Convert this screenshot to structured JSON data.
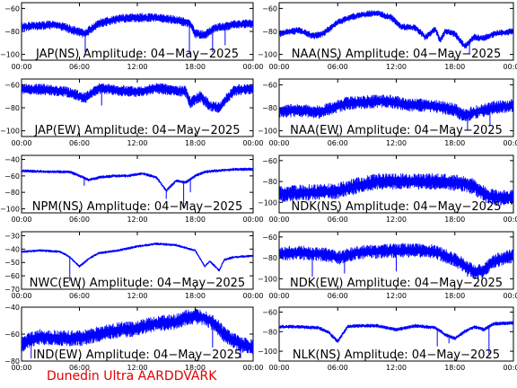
{
  "footer": "Dunedin Ultra AARDDVARK",
  "colors": {
    "trace": "#0000ff",
    "footer": "#e00000",
    "axes": "#000000"
  },
  "chart_data": [
    {
      "type": "line",
      "title": "JAP(NS) Amplitude: 04−May−2025",
      "xlim": [
        0,
        24
      ],
      "ylim": [
        -105,
        -55
      ],
      "yticks": [
        -100,
        -80,
        -60
      ],
      "ytick_labels": [
        "−100",
        "−80",
        "−60"
      ],
      "xtick_labels": [
        "00:00",
        "06:00",
        "12:00",
        "18:00",
        "00:00"
      ],
      "envelope": {
        "x": [
          0,
          2,
          3.5,
          5,
          6.5,
          8,
          10,
          12,
          14,
          16,
          17.5,
          18,
          19,
          20,
          21,
          22,
          24
        ],
        "y": [
          -76,
          -75,
          -74,
          -78,
          -82,
          -73,
          -69,
          -68,
          -68,
          -70,
          -73,
          -82,
          -83,
          -77,
          -76,
          -74,
          -73
        ]
      },
      "band": 4,
      "spikes": [
        [
          6.6,
          -98
        ],
        [
          17.4,
          -100
        ],
        [
          19.8,
          -98
        ],
        [
          21.1,
          -92
        ]
      ]
    },
    {
      "type": "line",
      "title": "NAA(NS) Amplitude: 04−May−2025",
      "xlim": [
        0,
        24
      ],
      "ylim": [
        -105,
        -55
      ],
      "yticks": [
        -100,
        -80,
        -60
      ],
      "ytick_labels": [
        "−100",
        "−80",
        "−60"
      ],
      "xtick_labels": [
        "00:00",
        "06:00",
        "12:00",
        "18:00",
        "00:00"
      ],
      "envelope": {
        "x": [
          0,
          2,
          3.5,
          4.5,
          6,
          8,
          10,
          11.5,
          12.5,
          14,
          15,
          16,
          16.5,
          17,
          18,
          19,
          20,
          21,
          22,
          24
        ],
        "y": [
          -82,
          -79,
          -84,
          -82,
          -72,
          -66,
          -64,
          -68,
          -76,
          -77,
          -85,
          -78,
          -88,
          -80,
          -82,
          -93,
          -85,
          -86,
          -82,
          -80
        ]
      },
      "band": 3,
      "spikes": [
        [
          19.5,
          -100
        ]
      ]
    },
    {
      "type": "line",
      "title": "JAP(EW) Amplitude: 04−May−2025",
      "xlim": [
        0,
        24
      ],
      "ylim": [
        -105,
        -55
      ],
      "yticks": [
        -100,
        -80,
        -60
      ],
      "ytick_labels": [
        "−100",
        "−80",
        "−60"
      ],
      "xtick_labels": [
        "00:00",
        "06:00",
        "12:00",
        "18:00",
        "00:00"
      ],
      "envelope": {
        "x": [
          0,
          2,
          4,
          5.5,
          6.5,
          8,
          10,
          12,
          14,
          16,
          17,
          17.5,
          18.5,
          19.5,
          20.5,
          22,
          24
        ],
        "y": [
          -64,
          -64,
          -65,
          -68,
          -72,
          -63,
          -65,
          -66,
          -63,
          -65,
          -66,
          -76,
          -70,
          -78,
          -80,
          -65,
          -63
        ]
      },
      "band": 5,
      "spikes": [
        [
          8.3,
          -78
        ]
      ]
    },
    {
      "type": "line",
      "title": "NAA(EW) Amplitude: 04−May−2025",
      "xlim": [
        0,
        24
      ],
      "ylim": [
        -105,
        -55
      ],
      "yticks": [
        -100,
        -80,
        -60
      ],
      "ytick_labels": [
        "−100",
        "−80",
        "−60"
      ],
      "xtick_labels": [
        "00:00",
        "06:00",
        "12:00",
        "18:00",
        "00:00"
      ],
      "envelope": {
        "x": [
          0,
          2,
          4,
          5.5,
          7,
          9,
          11,
          13,
          15,
          17,
          18,
          19,
          20,
          21,
          22,
          24
        ],
        "y": [
          -83,
          -82,
          -84,
          -80,
          -76,
          -75,
          -74,
          -77,
          -78,
          -80,
          -82,
          -87,
          -84,
          -82,
          -80,
          -78
        ]
      },
      "band": 6,
      "spikes": [
        [
          19.3,
          -100
        ],
        [
          21.6,
          -96
        ]
      ]
    },
    {
      "type": "line",
      "title": "NPM(NS) Amplitude: 04−May−2025",
      "xlim": [
        0,
        24
      ],
      "ylim": [
        -105,
        -35
      ],
      "yticks": [
        -100,
        -80,
        -60,
        -40
      ],
      "ytick_labels": [
        "−100",
        "−80",
        "−60",
        "−40"
      ],
      "xtick_labels": [
        "00:00",
        "06:00",
        "12:00",
        "18:00",
        "00:00"
      ],
      "envelope": {
        "x": [
          0,
          3,
          5,
          6,
          7,
          8,
          9.5,
          11,
          12.5,
          14,
          15,
          16,
          17,
          18,
          19,
          20,
          21,
          22,
          24
        ],
        "y": [
          -54,
          -55,
          -55,
          -60,
          -65,
          -62,
          -60,
          -60,
          -57,
          -62,
          -78,
          -66,
          -68,
          -60,
          -55,
          -54,
          -53,
          -52,
          -52
        ]
      },
      "band": 2,
      "spikes": [
        [
          6.5,
          -72
        ],
        [
          15,
          -88
        ],
        [
          16.8,
          -98
        ],
        [
          17.5,
          -80
        ]
      ]
    },
    {
      "type": "line",
      "title": "NDK(NS) Amplitude: 04−May−2025",
      "xlim": [
        0,
        24
      ],
      "ylim": [
        -110,
        -55
      ],
      "yticks": [
        -100,
        -80,
        -60
      ],
      "ytick_labels": [
        "−100",
        "−80",
        "−60"
      ],
      "xtick_labels": [
        "00:00",
        "06:00",
        "12:00",
        "18:00",
        "00:00"
      ],
      "envelope": {
        "x": [
          0,
          2,
          4,
          6,
          8,
          10,
          12,
          14,
          16,
          18,
          19,
          20,
          21,
          22,
          24
        ],
        "y": [
          -92,
          -91,
          -90,
          -89,
          -84,
          -80,
          -80,
          -80,
          -80,
          -81,
          -82,
          -85,
          -92,
          -95,
          -96
        ]
      },
      "band": 8,
      "spikes": []
    },
    {
      "type": "line",
      "title": "NWC(EW) Amplitude: 04−May−2025",
      "xlim": [
        0,
        24
      ],
      "ylim": [
        -70,
        -27
      ],
      "yticks": [
        -70,
        -60,
        -50,
        -40,
        -30
      ],
      "ytick_labels": [
        "−70",
        "−60",
        "−50",
        "−40",
        "−30"
      ],
      "xtick_labels": [
        "00:00",
        "06:00",
        "12:00",
        "18:00",
        "00:00"
      ],
      "envelope": {
        "x": [
          0,
          2,
          4,
          5,
          6,
          7,
          8,
          10,
          12,
          14,
          16,
          18,
          19,
          19.5,
          20.5,
          21,
          22,
          24
        ],
        "y": [
          -42,
          -41,
          -42,
          -46,
          -53,
          -47,
          -43,
          -41,
          -38,
          -36,
          -37,
          -41,
          -53,
          -49,
          -56,
          -48,
          -46,
          -45
        ]
      },
      "band": 1,
      "spikes": [
        [
          5,
          -64
        ]
      ]
    },
    {
      "type": "line",
      "title": "NDK(EW) Amplitude: 04−May−2025",
      "xlim": [
        0,
        24
      ],
      "ylim": [
        -110,
        -55
      ],
      "yticks": [
        -100,
        -80,
        -60
      ],
      "ytick_labels": [
        "−100",
        "−80",
        "−60"
      ],
      "xtick_labels": [
        "00:00",
        "06:00",
        "12:00",
        "18:00",
        "00:00"
      ],
      "envelope": {
        "x": [
          0,
          2,
          4,
          5,
          6,
          8,
          10,
          12,
          14,
          16,
          17,
          18,
          19,
          20,
          21,
          22,
          24
        ],
        "y": [
          -76,
          -75,
          -76,
          -77,
          -80,
          -75,
          -74,
          -73,
          -73,
          -74,
          -78,
          -82,
          -87,
          -94,
          -92,
          -83,
          -78
        ]
      },
      "band": 7,
      "spikes": [
        [
          3.4,
          -98
        ],
        [
          6.7,
          -95
        ],
        [
          12,
          -93
        ],
        [
          19.3,
          -98
        ]
      ]
    },
    {
      "type": "line",
      "title": "IND(EW) Amplitude: 04−May−2025",
      "xlim": [
        0,
        24
      ],
      "ylim": [
        -80,
        -40
      ],
      "yticks": [
        -80,
        -60,
        -40
      ],
      "ytick_labels": [
        "−80",
        "−60",
        "−40"
      ],
      "xtick_labels": [
        "00:00",
        "06:00",
        "12:00",
        "18:00",
        "00:00"
      ],
      "envelope": {
        "x": [
          0,
          1,
          2,
          4,
          6,
          8,
          10,
          12,
          14,
          16,
          17,
          18,
          19,
          20,
          21,
          22,
          23,
          24
        ],
        "y": [
          -68,
          -64,
          -62,
          -63,
          -63,
          -60,
          -57,
          -56,
          -52,
          -51,
          -48,
          -47,
          -48,
          -52,
          -60,
          -65,
          -68,
          -70
        ]
      },
      "band": 6,
      "spikes": [
        [
          1,
          -78
        ],
        [
          19.8,
          -70
        ],
        [
          22.7,
          -78
        ]
      ]
    },
    {
      "type": "line",
      "title": "NLK(NS) Amplitude: 04−May−2025",
      "xlim": [
        0,
        24
      ],
      "ylim": [
        -110,
        -55
      ],
      "yticks": [
        -100,
        -80,
        -60
      ],
      "ytick_labels": [
        "−100",
        "−80",
        "−60"
      ],
      "xtick_labels": [
        "00:00",
        "06:00",
        "12:00",
        "18:00",
        "00:00"
      ],
      "envelope": {
        "x": [
          0,
          2,
          4,
          5,
          6,
          7,
          8,
          10,
          12,
          14,
          16,
          17,
          18,
          19,
          20,
          21,
          22,
          24
        ],
        "y": [
          -75,
          -75,
          -76,
          -80,
          -90,
          -75,
          -74,
          -74,
          -78,
          -74,
          -76,
          -83,
          -87,
          -80,
          -75,
          -78,
          -72,
          -71
        ]
      },
      "band": 2,
      "spikes": [
        [
          16.2,
          -95
        ],
        [
          17.4,
          -92
        ],
        [
          21.5,
          -103
        ]
      ]
    }
  ]
}
